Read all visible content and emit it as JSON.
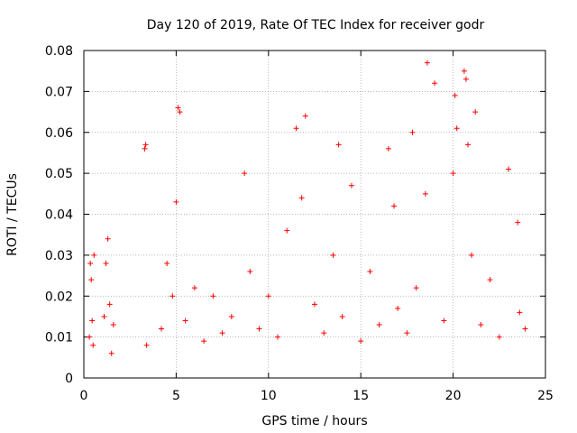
{
  "chart_data": {
    "type": "scatter",
    "title": "Day 120 of 2019, Rate Of TEC Index for receiver godr",
    "xlabel": "GPS time / hours",
    "ylabel": "ROTI / TECUs",
    "xlim": [
      0,
      25
    ],
    "ylim": [
      0,
      0.08
    ],
    "x_ticks": [
      0,
      5,
      10,
      15,
      20,
      25
    ],
    "x_tick_labels": [
      "0",
      "5",
      "10",
      "15",
      "20",
      "25"
    ],
    "y_ticks": [
      0,
      0.01,
      0.02,
      0.03,
      0.04,
      0.05,
      0.06,
      0.07,
      0.08
    ],
    "y_tick_labels": [
      "0",
      "0.01",
      "0.02",
      "0.03",
      "0.04",
      "0.05",
      "0.06",
      "0.07",
      "0.08"
    ],
    "grid": true,
    "marker": "plus",
    "marker_color": "#ff0000",
    "series": [
      {
        "name": "ROTI",
        "x": [
          0.3,
          0.35,
          0.4,
          0.45,
          0.5,
          0.55,
          1.1,
          1.2,
          1.3,
          1.4,
          1.5,
          1.6,
          3.3,
          3.35,
          3.4,
          4.2,
          4.5,
          4.8,
          5.0,
          5.1,
          5.2,
          5.5,
          6.0,
          6.5,
          7.0,
          7.5,
          8.0,
          8.7,
          9.0,
          9.5,
          10.0,
          10.5,
          11.0,
          11.5,
          11.8,
          12.0,
          12.5,
          13.0,
          13.5,
          13.8,
          14.0,
          14.5,
          15.0,
          15.5,
          16.0,
          16.5,
          16.8,
          17.0,
          17.5,
          17.8,
          18.0,
          18.5,
          18.6,
          19.0,
          19.5,
          20.0,
          20.1,
          20.2,
          20.6,
          20.7,
          20.8,
          21.0,
          21.2,
          21.5,
          22.0,
          22.5,
          23.0,
          23.5,
          23.6,
          23.9
        ],
        "y": [
          0.01,
          0.028,
          0.024,
          0.014,
          0.008,
          0.03,
          0.015,
          0.028,
          0.034,
          0.018,
          0.006,
          0.013,
          0.056,
          0.057,
          0.008,
          0.012,
          0.028,
          0.02,
          0.043,
          0.066,
          0.065,
          0.014,
          0.022,
          0.009,
          0.02,
          0.011,
          0.015,
          0.05,
          0.026,
          0.012,
          0.02,
          0.01,
          0.036,
          0.061,
          0.044,
          0.064,
          0.018,
          0.011,
          0.03,
          0.057,
          0.015,
          0.047,
          0.009,
          0.026,
          0.013,
          0.056,
          0.042,
          0.017,
          0.011,
          0.06,
          0.022,
          0.045,
          0.077,
          0.072,
          0.014,
          0.05,
          0.069,
          0.061,
          0.075,
          0.073,
          0.057,
          0.03,
          0.065,
          0.013,
          0.024,
          0.01,
          0.051,
          0.038,
          0.016,
          0.012
        ]
      }
    ]
  }
}
